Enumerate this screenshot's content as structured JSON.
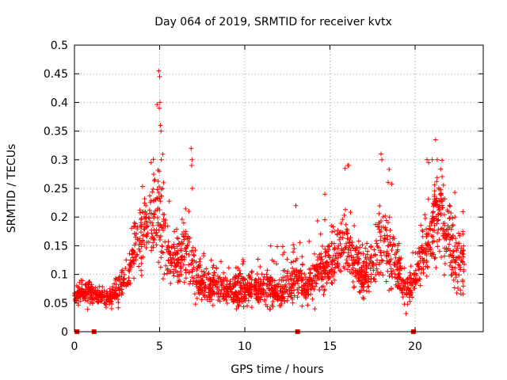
{
  "chart_data": {
    "type": "scatter",
    "title": "Day 064 of 2019, SRMTID for receiver kvtx",
    "xlabel": "GPS time / hours",
    "ylabel": "SRMTID / TECUs",
    "xlim": [
      0,
      24
    ],
    "ylim": [
      0,
      0.5
    ],
    "xticks": [
      0,
      5,
      10,
      15,
      20
    ],
    "xtick_labels": [
      "0",
      "5",
      "10",
      "15",
      "20"
    ],
    "yticks": [
      0,
      0.05,
      0.1,
      0.15,
      0.2,
      0.25,
      0.3,
      0.35,
      0.4,
      0.45,
      0.5
    ],
    "ytick_labels": [
      "0",
      "0.05",
      "0.1",
      "0.15",
      "0.2",
      "0.25",
      "0.3",
      "0.35",
      "0.4",
      "0.45",
      "0.5"
    ],
    "grid": true,
    "marker": "plus",
    "color": "#ff0000",
    "zero_markers_x": [
      0.15,
      1.15,
      13.1,
      19.9
    ],
    "profile": [
      [
        0.0,
        0.06,
        0.012
      ],
      [
        0.5,
        0.07,
        0.015
      ],
      [
        1.0,
        0.068,
        0.014
      ],
      [
        1.5,
        0.06,
        0.012
      ],
      [
        2.0,
        0.058,
        0.012
      ],
      [
        2.5,
        0.07,
        0.015
      ],
      [
        3.0,
        0.09,
        0.02
      ],
      [
        3.5,
        0.14,
        0.035
      ],
      [
        4.0,
        0.18,
        0.045
      ],
      [
        4.5,
        0.19,
        0.05
      ],
      [
        5.0,
        0.22,
        0.07
      ],
      [
        5.5,
        0.14,
        0.04
      ],
      [
        6.0,
        0.12,
        0.03
      ],
      [
        6.5,
        0.15,
        0.045
      ],
      [
        7.0,
        0.1,
        0.03
      ],
      [
        7.5,
        0.085,
        0.02
      ],
      [
        8.0,
        0.08,
        0.02
      ],
      [
        9.0,
        0.07,
        0.02
      ],
      [
        10.0,
        0.075,
        0.02
      ],
      [
        11.0,
        0.075,
        0.02
      ],
      [
        12.0,
        0.07,
        0.02
      ],
      [
        13.0,
        0.095,
        0.03
      ],
      [
        13.5,
        0.075,
        0.02
      ],
      [
        14.0,
        0.09,
        0.025
      ],
      [
        15.0,
        0.12,
        0.035
      ],
      [
        16.0,
        0.15,
        0.04
      ],
      [
        16.5,
        0.11,
        0.03
      ],
      [
        17.0,
        0.1,
        0.03
      ],
      [
        17.5,
        0.12,
        0.035
      ],
      [
        18.0,
        0.15,
        0.05
      ],
      [
        18.5,
        0.14,
        0.04
      ],
      [
        19.0,
        0.1,
        0.03
      ],
      [
        19.5,
        0.07,
        0.02
      ],
      [
        20.0,
        0.09,
        0.02
      ],
      [
        20.5,
        0.14,
        0.04
      ],
      [
        21.0,
        0.18,
        0.05
      ],
      [
        21.5,
        0.21,
        0.055
      ],
      [
        22.0,
        0.17,
        0.05
      ],
      [
        22.5,
        0.11,
        0.03
      ],
      [
        22.9,
        0.12,
        0.03
      ]
    ],
    "peaks": [
      [
        4.95,
        0.455
      ],
      [
        5.0,
        0.445
      ],
      [
        5.02,
        0.4
      ],
      [
        4.98,
        0.39
      ],
      [
        5.05,
        0.36
      ],
      [
        5.08,
        0.35
      ],
      [
        5.1,
        0.3
      ],
      [
        6.85,
        0.32
      ],
      [
        6.9,
        0.3
      ],
      [
        6.88,
        0.29
      ],
      [
        6.92,
        0.25
      ],
      [
        4.5,
        0.295
      ],
      [
        16.05,
        0.29
      ],
      [
        16.1,
        0.29
      ],
      [
        18.0,
        0.31
      ],
      [
        18.05,
        0.3
      ],
      [
        21.2,
        0.335
      ],
      [
        21.0,
        0.3
      ],
      [
        21.3,
        0.3
      ],
      [
        20.7,
        0.3
      ],
      [
        20.8,
        0.295
      ],
      [
        14.7,
        0.24
      ],
      [
        13.0,
        0.22
      ]
    ]
  }
}
